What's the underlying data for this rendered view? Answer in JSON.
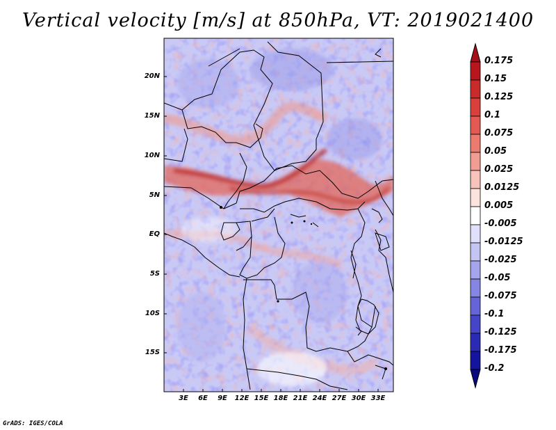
{
  "title": "Vertical velocity [m/s] at 850hPa, VT: 2019021400",
  "credit": "GrADS: IGES/COLA",
  "map": {
    "lat_range": [
      -20,
      25
    ],
    "lon_range": [
      0,
      35
    ],
    "lat_ticks": [
      "20N",
      "15N",
      "10N",
      "5N",
      "EQ",
      "5S",
      "10S",
      "15S"
    ],
    "lon_ticks": [
      "3E",
      "6E",
      "9E",
      "12E",
      "15E",
      "18E",
      "21E",
      "24E",
      "27E",
      "30E",
      "33E"
    ],
    "features": [
      "rising-band-sahel-central-africa",
      "country-borders",
      "lakes"
    ]
  },
  "colorbar": {
    "labels": [
      "0.175",
      "0.15",
      "0.125",
      "0.1",
      "0.075",
      "0.05",
      "0.025",
      "0.0125",
      "0.005",
      "-0.005",
      "-0.0125",
      "-0.025",
      "-0.05",
      "-0.075",
      "-0.1",
      "-0.125",
      "-0.175",
      "-0.2"
    ],
    "colors": [
      "#a50f15",
      "#b8161d",
      "#c92a2a",
      "#d93f3b",
      "#e35a52",
      "#eb7a6f",
      "#f29d92",
      "#f8c3ba",
      "#fde3de",
      "#ffffff",
      "#e0e0fb",
      "#c4c4f5",
      "#a5a5ee",
      "#8585e4",
      "#6565d8",
      "#4545c8",
      "#2a2ab5",
      "#14149e",
      "#0a0a80"
    ]
  }
}
